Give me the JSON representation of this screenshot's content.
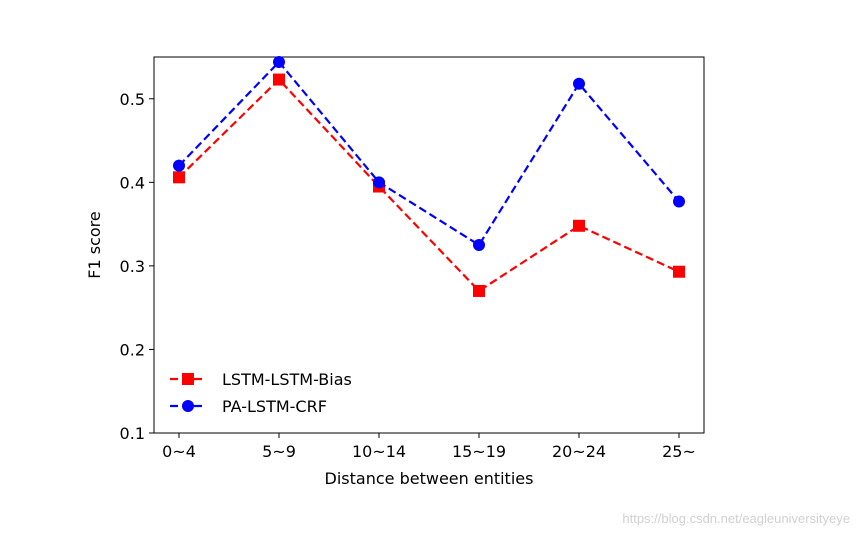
{
  "chart_data": {
    "type": "line",
    "title": "",
    "xlabel": "Distance between entities",
    "ylabel": "F1 score",
    "categories": [
      "0~4",
      "5~9",
      "10~14",
      "15~19",
      "20~24",
      "25~"
    ],
    "ylim": [
      0.1,
      0.55
    ],
    "yticks": [
      "0.1",
      "0.2",
      "0.3",
      "0.4",
      "0.5"
    ],
    "ytick_values": [
      0.1,
      0.2,
      0.3,
      0.4,
      0.5
    ],
    "grid": false,
    "legend_position": "lower-left",
    "series": [
      {
        "name": "LSTM-LSTM-Bias",
        "color": "#ff0000",
        "marker": "square",
        "linestyle": "dashed",
        "values": [
          0.406,
          0.523,
          0.395,
          0.27,
          0.348,
          0.293
        ]
      },
      {
        "name": "PA-LSTM-CRF",
        "color": "#0000ff",
        "marker": "circle",
        "linestyle": "dashed",
        "values": [
          0.42,
          0.544,
          0.4,
          0.325,
          0.518,
          0.377
        ]
      }
    ]
  },
  "watermark": "https://blog.csdn.net/eagleuniversityeye"
}
